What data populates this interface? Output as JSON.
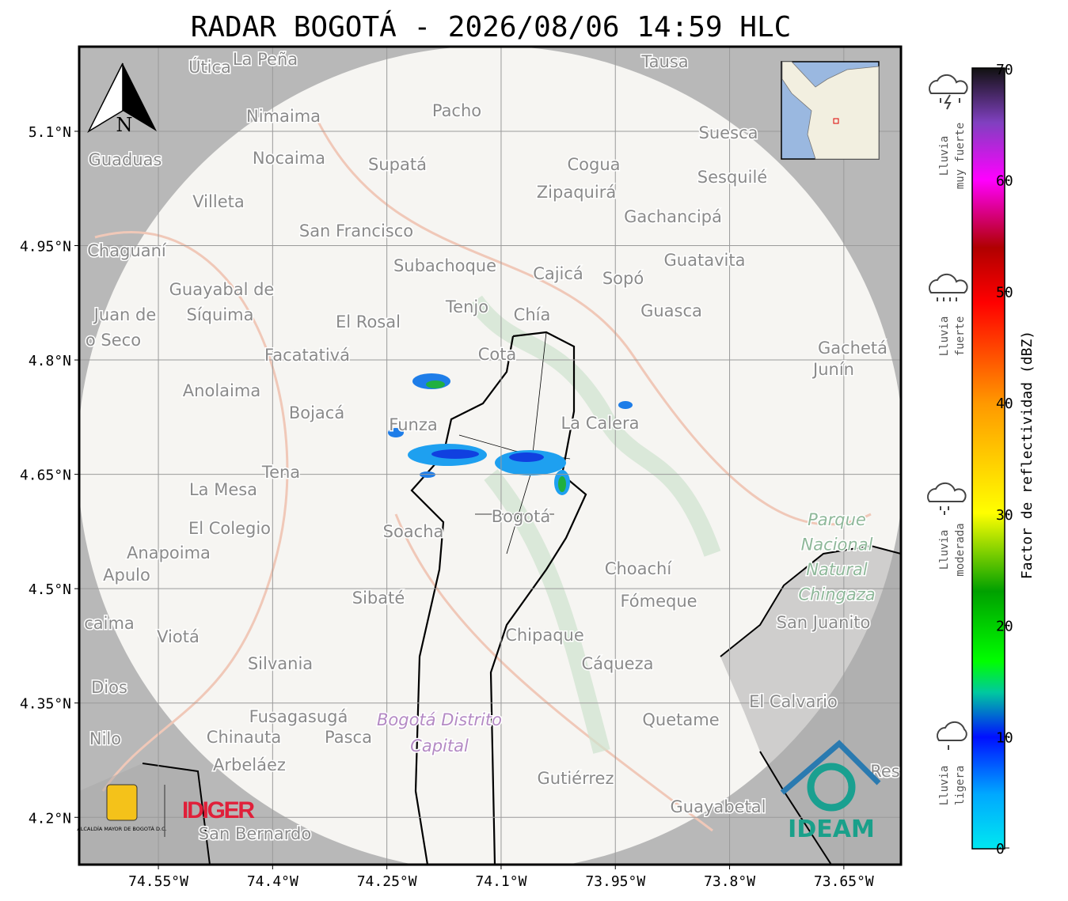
{
  "map": {
    "title": "RADAR BOGOTÁ - 2026/08/06 14:59 HLC",
    "xlim": [
      -74.654,
      -73.575
    ],
    "ylim": [
      4.138,
      5.211
    ],
    "xticks": [
      {
        "value": -74.55,
        "label": "74.55°W"
      },
      {
        "value": -74.4,
        "label": "74.4°W"
      },
      {
        "value": -74.25,
        "label": "74.25°W"
      },
      {
        "value": -74.1,
        "label": "74.1°W"
      },
      {
        "value": -73.95,
        "label": "73.95°W"
      },
      {
        "value": -73.8,
        "label": "73.8°W"
      },
      {
        "value": -73.65,
        "label": "73.65°W"
      }
    ],
    "yticks": [
      {
        "value": 5.1,
        "label": "5.1°N"
      },
      {
        "value": 4.95,
        "label": "4.95°N"
      },
      {
        "value": 4.8,
        "label": "4.8°N"
      },
      {
        "value": 4.65,
        "label": "4.65°N"
      },
      {
        "value": 4.5,
        "label": "4.5°N"
      },
      {
        "value": 4.35,
        "label": "4.35°N"
      },
      {
        "value": 4.2,
        "label": "4.2°N"
      }
    ],
    "north": "N",
    "places": [
      "Útica",
      "La Peña",
      "Tausa",
      "Pacho",
      "Nimaima",
      "Suesca",
      "Guaduas",
      "Nocaima",
      "Supatá",
      "Cogua",
      "Sesquilé",
      "Zipaquirá",
      "Villeta",
      "Gachancipá",
      "San Francisco",
      "Chaguaní",
      "Guatavita",
      "Subachoque",
      "Cajicá",
      "Sopó",
      "Guayabal de",
      "Tenjo",
      "Guasca",
      "Juan de",
      "Síquima",
      "Chía",
      "El Rosal",
      "o Seco",
      "Facatativá",
      "Cota",
      "Gachetá",
      "Junín",
      "Anolaima",
      "Bojacá",
      "Funza",
      "La Calera",
      "Tena",
      "La Mesa",
      "Bogotá",
      "El Colegio",
      "Soacha",
      "Anapoima",
      "Apulo",
      "Choachí",
      "Sibaté",
      "Fómeque",
      "San Juanito",
      "caima",
      "Viotá",
      "Chipaque",
      "Silvania",
      "Cáqueza",
      "Dios",
      "El Calvario",
      "Fusagasugá",
      "Quetame",
      "Nilo",
      "Chinauta",
      "Pasca",
      "Arbeláez",
      "Gutiérrez",
      "Res",
      "Guayabetal",
      "San Bernardo"
    ],
    "park": [
      "Parque",
      "Nacional",
      "Natural",
      "Chingaza"
    ],
    "district": [
      "Bogotá Distrito",
      "Capital"
    ],
    "logos": {
      "alcaldia": "ALCALDÍA MAYOR DE BOGOTÁ D.C.",
      "idiger": "IDIGER",
      "ideam": "IDEAM"
    }
  },
  "colorbar": {
    "label": "Factor de reflectividad (dBZ)",
    "lim": [
      0,
      70
    ],
    "ticks": [
      0,
      10,
      20,
      30,
      40,
      50,
      60,
      70
    ],
    "categories": [
      {
        "lines": [
          "Lluvia",
          "muy fuerte"
        ]
      },
      {
        "lines": [
          "Lluvia",
          "fuerte"
        ]
      },
      {
        "lines": [
          "Lluvia",
          "moderada"
        ]
      },
      {
        "lines": [
          "Lluvia",
          "ligera"
        ]
      }
    ]
  }
}
